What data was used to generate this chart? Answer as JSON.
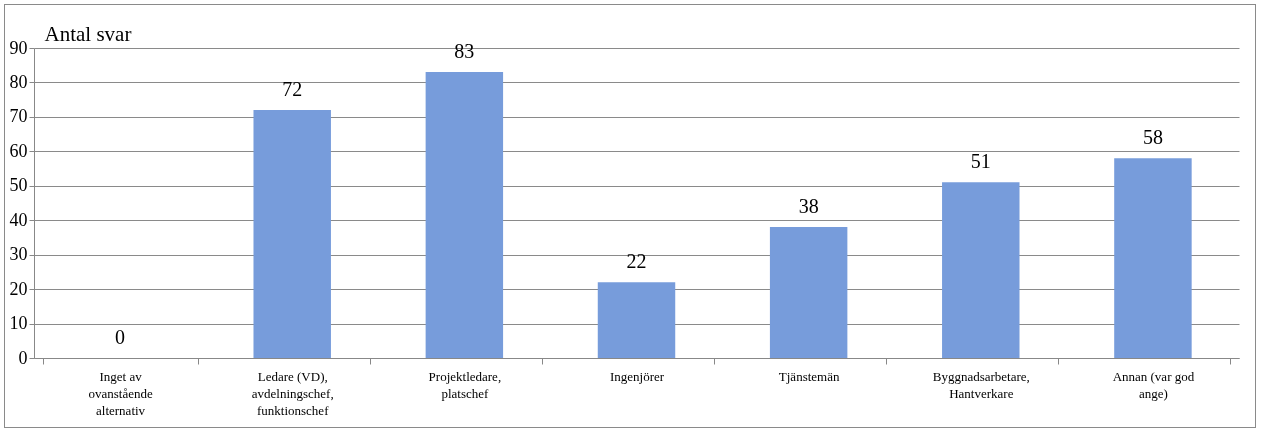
{
  "chart_data": {
    "type": "bar",
    "ylabel": "Antal svar",
    "categories": [
      "Inget av ovanstående alternativ",
      "Ledare (VD), avdelningschef, funktionschef",
      "Projektledare, platschef",
      "Ingenjörer",
      "Tjänstemän",
      "Byggnadsarbetare, Hantverkare",
      "Annan (var god ange)"
    ],
    "values": [
      0,
      72,
      83,
      22,
      38,
      51,
      58
    ],
    "color": "#779cdb",
    "ylim": [
      0,
      90
    ],
    "yticks": [
      0,
      10,
      20,
      30,
      40,
      50,
      60,
      70,
      80,
      90
    ],
    "grid": "y",
    "data_labels": true
  }
}
